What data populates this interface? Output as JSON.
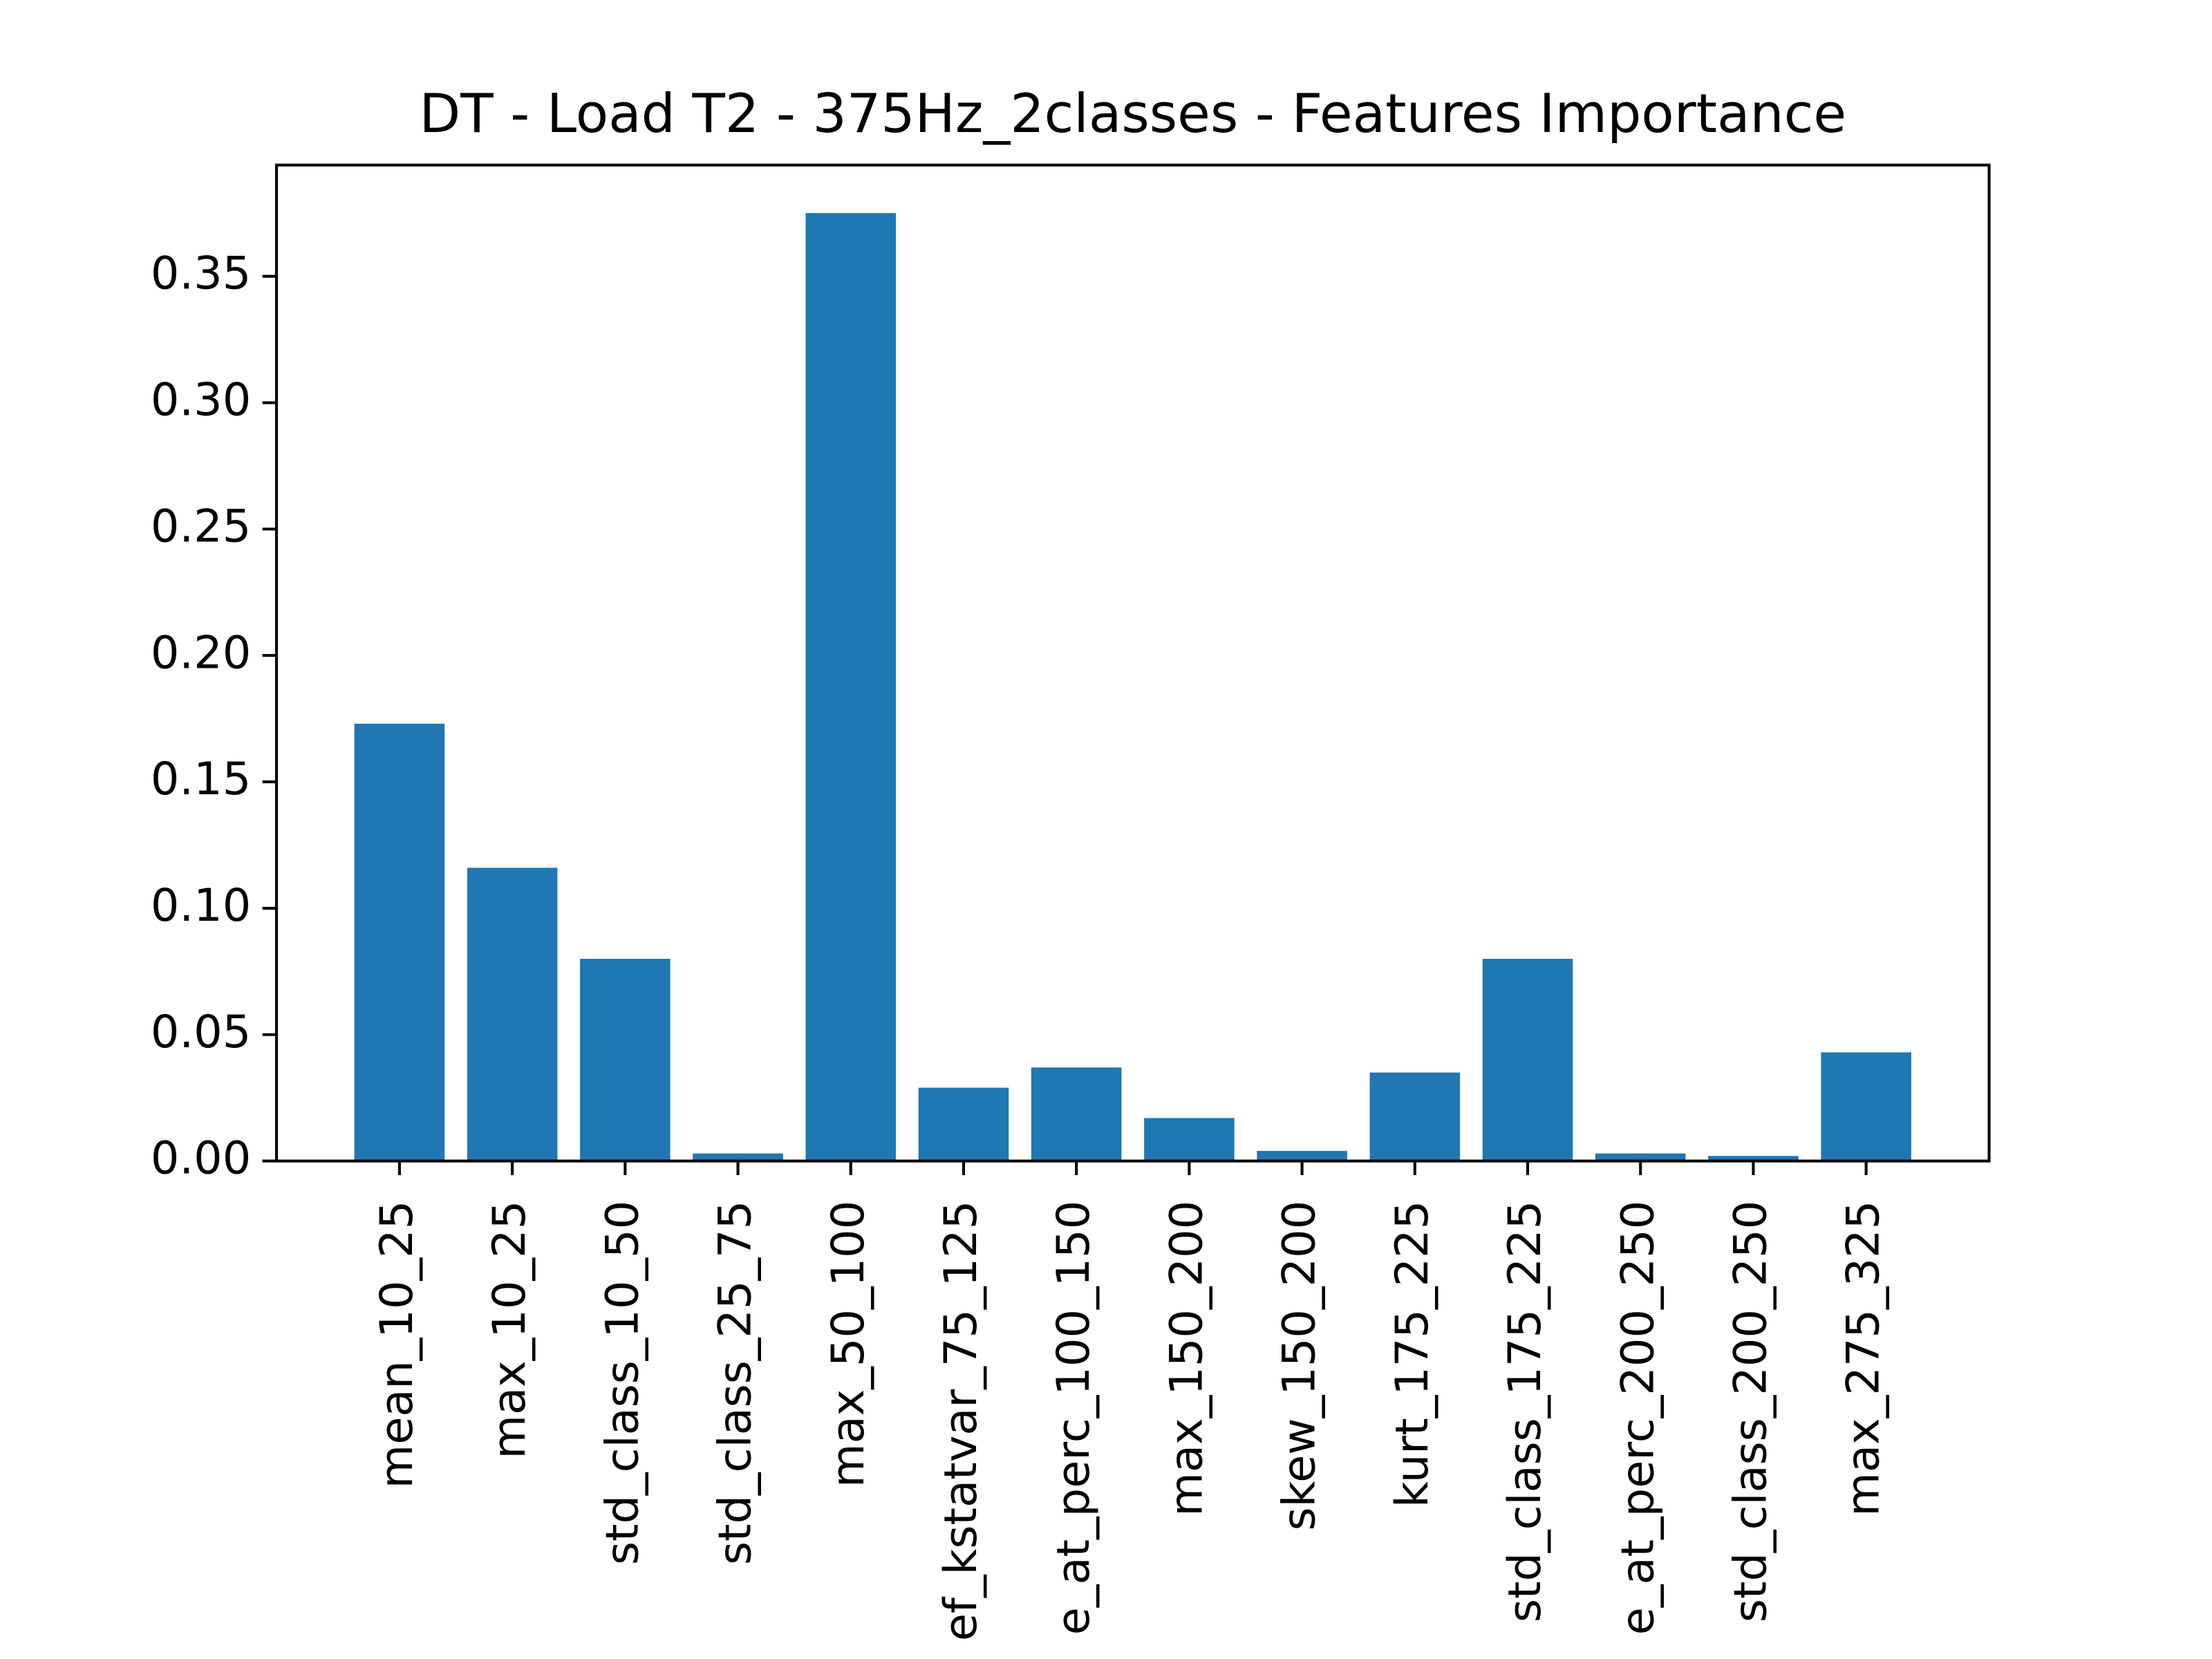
{
  "chart_data": {
    "type": "bar",
    "title": "DT - Load T2 - 375Hz_2classes - Features Importance",
    "categories": [
      "mean_10_25",
      "max_10_25",
      "std_class_10_50",
      "std_class_25_75",
      "max_50_100",
      "ef_kstatvar_75_125",
      "e_at_perc_100_150",
      "max_150_200",
      "skew_150_200",
      "kurt_175_225",
      "std_class_175_225",
      "e_at_perc_200_250",
      "std_class_200_250",
      "max_275_325"
    ],
    "values": [
      0.173,
      0.116,
      0.08,
      0.003,
      0.375,
      0.029,
      0.037,
      0.017,
      0.004,
      0.035,
      0.08,
      0.003,
      0.002,
      0.043
    ],
    "color": "#1f77b4",
    "ylim": [
      0,
      0.394
    ],
    "yticks": [
      {
        "value": 0,
        "label": "0.00"
      },
      {
        "value": 0.05,
        "label": "0.05"
      },
      {
        "value": 0.1,
        "label": "0.10"
      },
      {
        "value": 0.15,
        "label": "0.15"
      },
      {
        "value": 0.2,
        "label": "0.20"
      },
      {
        "value": 0.25,
        "label": "0.25"
      },
      {
        "value": 0.3,
        "label": "0.30"
      },
      {
        "value": 0.35,
        "label": "0.35"
      }
    ],
    "grid": false
  }
}
